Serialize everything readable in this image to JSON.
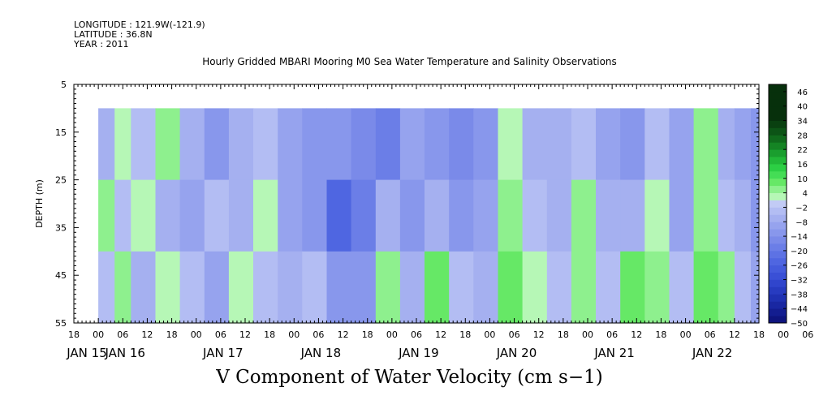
{
  "header": {
    "longitude": "LONGITUDE : 121.9W(-121.9)",
    "latitude": "LATITUDE : 36.8N",
    "year": "YEAR : 2011"
  },
  "chart_data": {
    "type": "heatmap",
    "title": "Hourly Gridded MBARI Mooring M0 Sea Water Temperature and Salinity Observations",
    "caption": "V Component of Water Velocity (cm s−1)",
    "ylabel": "DEPTH (m)",
    "ylim": [
      55,
      5
    ],
    "y_ticks": [
      "5",
      "15",
      "25",
      "35",
      "45",
      "55"
    ],
    "y_data_range": [
      10,
      55
    ],
    "x_range_hours": [
      -6,
      162
    ],
    "x_data_start_hour": 0,
    "x_hour_ticks": [
      "18",
      "00",
      "06",
      "12",
      "18",
      "00",
      "06",
      "12",
      "18",
      "00",
      "06",
      "12",
      "18",
      "00",
      "06",
      "12",
      "18",
      "00",
      "06",
      "12",
      "18",
      "00",
      "06",
      "12",
      "18",
      "00",
      "06",
      "12",
      "18",
      "00",
      "06",
      "12",
      "18"
    ],
    "day_labels": [
      "JAN 15",
      "JAN 16",
      "JAN 17",
      "JAN 18",
      "JAN 19",
      "JAN 20",
      "JAN 21",
      "JAN 22"
    ],
    "colorbar": {
      "ticks": [
        "46",
        "40",
        "34",
        "28",
        "22",
        "16",
        "10",
        "4",
        "−2",
        "−8",
        "−14",
        "−20",
        "−26",
        "−32",
        "−38",
        "−44",
        "−50"
      ],
      "min": -50,
      "max": 49,
      "step": 3,
      "positive_colors": [
        "#b6f7b6",
        "#8ef08e",
        "#66e866",
        "#44dd55",
        "#2ccf44",
        "#22b838",
        "#1a9e2e",
        "#158424",
        "#106a1c",
        "#0c5416",
        "#094010",
        "#07300c"
      ],
      "negative_colors": [
        "#c2cbf5",
        "#b3bdf3",
        "#a5b0f0",
        "#96a3ee",
        "#8897ec",
        "#7a8ae9",
        "#6b7ee7",
        "#5d72e4",
        "#4f66e1",
        "#445bdc",
        "#3a50d6",
        "#3045cc",
        "#273bc0",
        "#1f31b2",
        "#1927a2",
        "#131d90",
        "#0e147e",
        "#0a0c6b"
      ]
    },
    "bands": [
      {
        "depth": [
          10,
          25
        ],
        "hours": [
          {
            "h": 0,
            "v": -6
          },
          {
            "h": 4,
            "v": 2
          },
          {
            "h": 8,
            "v": -5
          },
          {
            "h": 14,
            "v": 3
          },
          {
            "h": 20,
            "v": -8
          },
          {
            "h": 26,
            "v": -12
          },
          {
            "h": 32,
            "v": -7
          },
          {
            "h": 38,
            "v": -4
          },
          {
            "h": 44,
            "v": -11
          },
          {
            "h": 50,
            "v": -13
          },
          {
            "h": 56,
            "v": -12
          },
          {
            "h": 62,
            "v": -16
          },
          {
            "h": 68,
            "v": -18
          },
          {
            "h": 74,
            "v": -9
          },
          {
            "h": 80,
            "v": -12
          },
          {
            "h": 86,
            "v": -17
          },
          {
            "h": 92,
            "v": -14
          },
          {
            "h": 98,
            "v": 1
          },
          {
            "h": 104,
            "v": -6
          },
          {
            "h": 110,
            "v": -8
          },
          {
            "h": 116,
            "v": -3
          },
          {
            "h": 122,
            "v": -9
          },
          {
            "h": 128,
            "v": -12
          },
          {
            "h": 134,
            "v": -4
          },
          {
            "h": 140,
            "v": -10
          },
          {
            "h": 146,
            "v": 5
          },
          {
            "h": 152,
            "v": -6
          },
          {
            "h": 156,
            "v": -9
          },
          {
            "h": 160,
            "v": -14
          }
        ]
      },
      {
        "depth": [
          25,
          40
        ],
        "hours": [
          {
            "h": 0,
            "v": 3
          },
          {
            "h": 4,
            "v": -4
          },
          {
            "h": 8,
            "v": 2
          },
          {
            "h": 14,
            "v": -6
          },
          {
            "h": 20,
            "v": -9
          },
          {
            "h": 26,
            "v": -3
          },
          {
            "h": 32,
            "v": -8
          },
          {
            "h": 38,
            "v": 2
          },
          {
            "h": 44,
            "v": -10
          },
          {
            "h": 50,
            "v": -14
          },
          {
            "h": 56,
            "v": -24
          },
          {
            "h": 62,
            "v": -18
          },
          {
            "h": 68,
            "v": -6
          },
          {
            "h": 74,
            "v": -12
          },
          {
            "h": 80,
            "v": -8
          },
          {
            "h": 86,
            "v": -14
          },
          {
            "h": 92,
            "v": -11
          },
          {
            "h": 98,
            "v": 4
          },
          {
            "h": 104,
            "v": -3
          },
          {
            "h": 110,
            "v": -7
          },
          {
            "h": 116,
            "v": 3
          },
          {
            "h": 122,
            "v": -6
          },
          {
            "h": 128,
            "v": -8
          },
          {
            "h": 134,
            "v": 2
          },
          {
            "h": 140,
            "v": -9
          },
          {
            "h": 146,
            "v": 3
          },
          {
            "h": 152,
            "v": -3
          },
          {
            "h": 156,
            "v": -6
          },
          {
            "h": 160,
            "v": -12
          }
        ]
      },
      {
        "depth": [
          40,
          55
        ],
        "hours": [
          {
            "h": 0,
            "v": -4
          },
          {
            "h": 4,
            "v": 3
          },
          {
            "h": 8,
            "v": -6
          },
          {
            "h": 14,
            "v": 1
          },
          {
            "h": 20,
            "v": -5
          },
          {
            "h": 26,
            "v": -9
          },
          {
            "h": 32,
            "v": 2
          },
          {
            "h": 38,
            "v": -3
          },
          {
            "h": 44,
            "v": -7
          },
          {
            "h": 50,
            "v": -5
          },
          {
            "h": 56,
            "v": -14
          },
          {
            "h": 62,
            "v": -12
          },
          {
            "h": 68,
            "v": 4
          },
          {
            "h": 74,
            "v": -6
          },
          {
            "h": 80,
            "v": 8
          },
          {
            "h": 86,
            "v": -4
          },
          {
            "h": 92,
            "v": -7
          },
          {
            "h": 98,
            "v": 6
          },
          {
            "h": 104,
            "v": 2
          },
          {
            "h": 110,
            "v": -4
          },
          {
            "h": 116,
            "v": 5
          },
          {
            "h": 122,
            "v": -3
          },
          {
            "h": 128,
            "v": 8
          },
          {
            "h": 134,
            "v": 3
          },
          {
            "h": 140,
            "v": -4
          },
          {
            "h": 146,
            "v": 6
          },
          {
            "h": 152,
            "v": 4
          },
          {
            "h": 156,
            "v": -3
          },
          {
            "h": 160,
            "v": -10
          }
        ]
      }
    ]
  }
}
